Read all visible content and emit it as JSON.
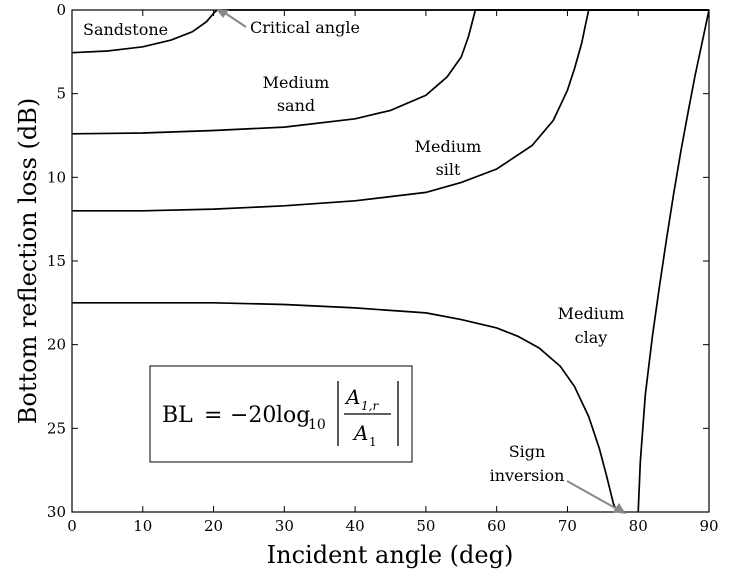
{
  "chart_data": {
    "type": "line",
    "xlabel": "Incident angle (deg)",
    "ylabel": "Bottom reflection loss (dB)",
    "xlim": [
      0,
      90
    ],
    "ylim": [
      0,
      30
    ],
    "y_inverted": true,
    "grid": false,
    "x_ticks": [
      0,
      10,
      20,
      30,
      40,
      50,
      60,
      70,
      80,
      90
    ],
    "y_ticks": [
      0,
      5,
      10,
      15,
      20,
      25,
      30
    ],
    "series": [
      {
        "name": "Sandstone",
        "x": [
          0,
          5,
          10,
          14,
          17,
          19,
          20,
          20.5,
          21,
          90
        ],
        "y": [
          2.55,
          2.45,
          2.2,
          1.8,
          1.3,
          0.7,
          0.2,
          0,
          0,
          0
        ]
      },
      {
        "name": "Medium sand",
        "x": [
          0,
          10,
          20,
          30,
          40,
          45,
          50,
          53,
          55,
          56,
          56.5,
          57,
          90
        ],
        "y": [
          7.4,
          7.35,
          7.2,
          7.0,
          6.5,
          6.0,
          5.1,
          4.0,
          2.8,
          1.6,
          0.8,
          0,
          0
        ]
      },
      {
        "name": "Medium silt",
        "x": [
          0,
          10,
          20,
          30,
          40,
          50,
          55,
          60,
          65,
          68,
          70,
          71,
          72,
          72.5,
          73,
          90
        ],
        "y": [
          12.0,
          12.0,
          11.9,
          11.7,
          11.4,
          10.9,
          10.3,
          9.5,
          8.1,
          6.6,
          4.8,
          3.5,
          2.0,
          1.0,
          0,
          0
        ]
      },
      {
        "name": "Medium clay",
        "x": [
          0,
          10,
          20,
          30,
          40,
          50,
          55,
          60,
          63,
          66,
          69,
          71,
          73,
          74.5,
          75.5,
          76.5,
          77
        ],
        "y": [
          17.5,
          17.5,
          17.5,
          17.6,
          17.8,
          18.1,
          18.5,
          19.0,
          19.5,
          20.2,
          21.3,
          22.5,
          24.3,
          26.2,
          27.8,
          29.5,
          30
        ],
        "branch2": {
          "x": [
            80,
            80.3,
            81,
            82,
            83,
            84,
            85,
            86,
            87,
            88,
            89,
            90
          ],
          "y": [
            30,
            27.0,
            23.0,
            19.5,
            16.5,
            13.7,
            11.0,
            8.5,
            6.2,
            4.0,
            2.0,
            0
          ]
        }
      }
    ],
    "annotations": [
      {
        "lines": [
          "Sandstone"
        ]
      },
      {
        "lines": [
          "Critical angle"
        ]
      },
      {
        "lines": [
          "Medium",
          "sand"
        ]
      },
      {
        "lines": [
          "Medium",
          "silt"
        ]
      },
      {
        "lines": [
          "Medium",
          "clay"
        ]
      },
      {
        "lines": [
          "Sign",
          "inversion"
        ]
      }
    ],
    "formula": {
      "lhs": "BL",
      "eq": "=",
      "coef": "−20",
      "log": "log",
      "log_sub": "10",
      "num_main": "A",
      "num_sub": "1,r",
      "den_main": "A",
      "den_sub": "1"
    }
  }
}
